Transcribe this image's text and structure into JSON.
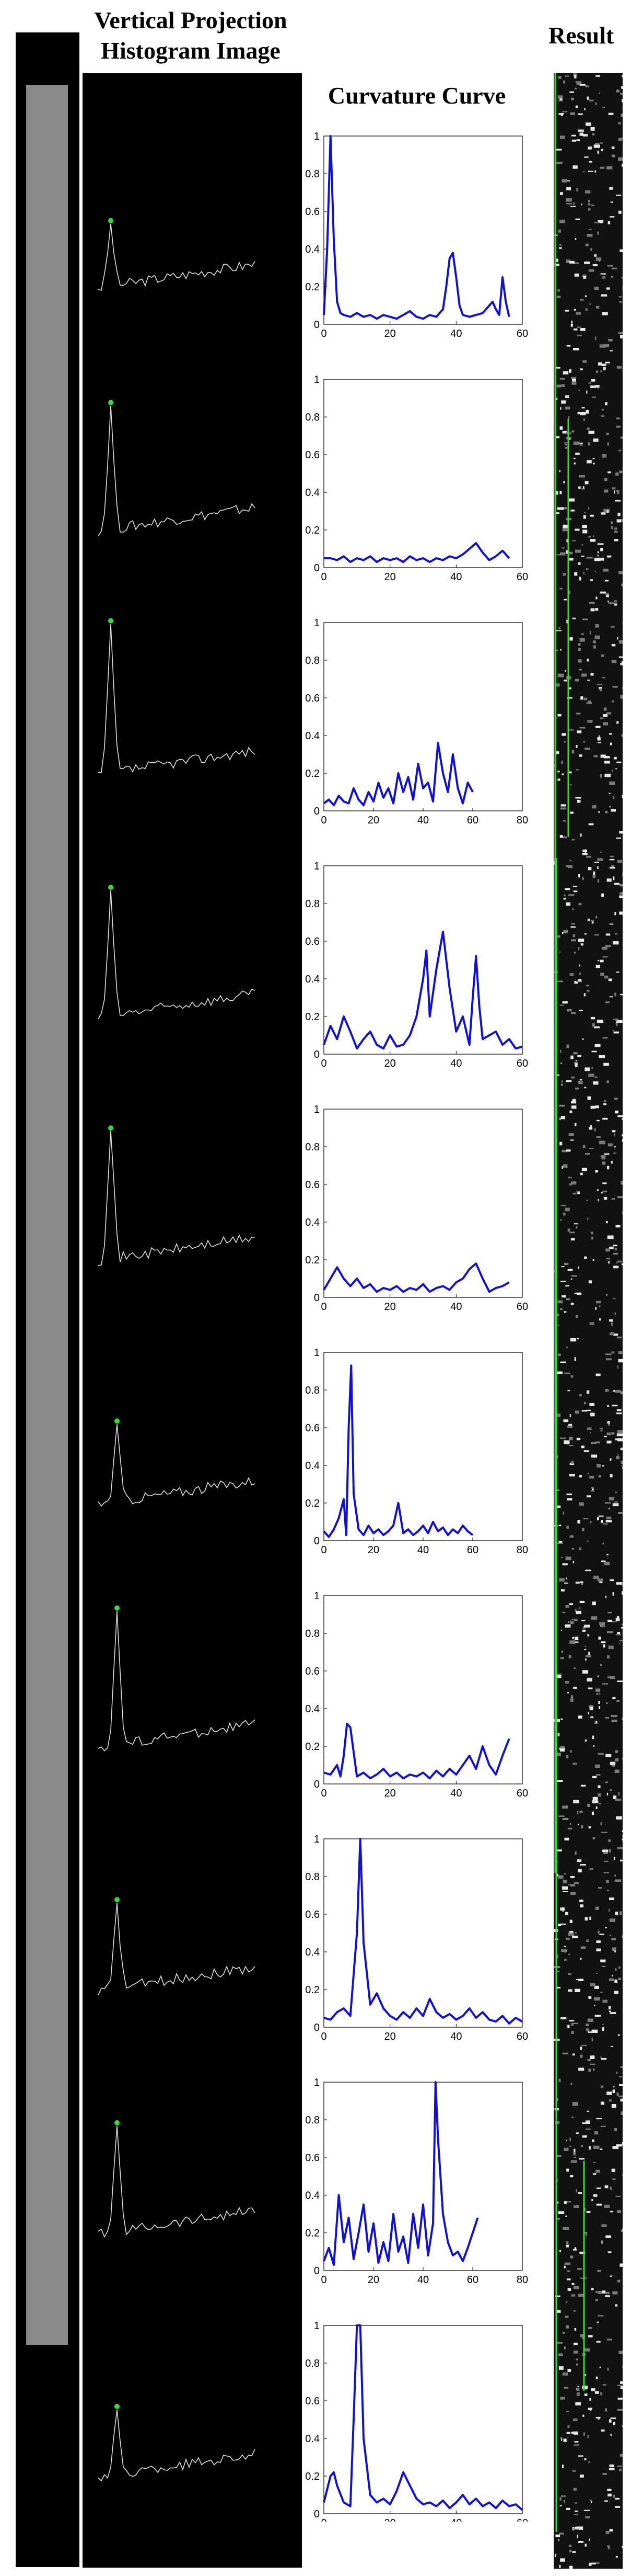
{
  "headers": {
    "vertical_projection": "Vertical Projection Histogram Image",
    "curvature_curve": "Curvature Curve",
    "result": "Result"
  },
  "colors": {
    "curve": "#1010d8",
    "marker_green": "#33dd33",
    "marker_red": "#dd2222",
    "result_line": "#33dd33"
  },
  "chart_data": [
    {
      "type": "line",
      "xlim": [
        0,
        60
      ],
      "ylim": [
        0,
        1
      ],
      "xticks": [
        "0",
        "20",
        "40",
        "60"
      ],
      "yticks": [
        "0",
        "0.2",
        "0.4",
        "0.6",
        "0.8",
        "1"
      ],
      "series": [
        {
          "x": [
            0,
            1,
            2,
            3,
            4,
            5,
            6,
            8,
            10,
            12,
            14,
            16,
            18,
            20,
            22,
            24,
            26,
            28,
            30,
            32,
            34,
            36,
            37,
            38,
            39,
            40,
            41,
            42,
            44,
            46,
            48,
            50,
            51,
            52,
            53,
            54,
            55,
            56
          ],
          "values": [
            0.05,
            0.4,
            1.0,
            0.45,
            0.12,
            0.06,
            0.05,
            0.04,
            0.06,
            0.04,
            0.05,
            0.03,
            0.05,
            0.04,
            0.03,
            0.05,
            0.07,
            0.04,
            0.03,
            0.05,
            0.04,
            0.08,
            0.2,
            0.35,
            0.38,
            0.25,
            0.1,
            0.05,
            0.04,
            0.05,
            0.06,
            0.1,
            0.12,
            0.08,
            0.05,
            0.25,
            0.12,
            0.04
          ]
        }
      ]
    },
    {
      "type": "line",
      "xlim": [
        0,
        60
      ],
      "ylim": [
        0,
        1
      ],
      "xticks": [
        "0",
        "20",
        "40",
        "60"
      ],
      "yticks": [
        "0",
        "0.2",
        "0.4",
        "0.6",
        "0.8",
        "1"
      ],
      "series": [
        {
          "x": [
            0,
            2,
            4,
            6,
            8,
            10,
            12,
            14,
            16,
            18,
            20,
            22,
            24,
            26,
            28,
            30,
            32,
            34,
            36,
            38,
            40,
            42,
            44,
            46,
            48,
            50,
            52,
            54,
            56
          ],
          "values": [
            0.05,
            0.05,
            0.04,
            0.06,
            0.03,
            0.05,
            0.04,
            0.06,
            0.03,
            0.05,
            0.04,
            0.05,
            0.03,
            0.06,
            0.04,
            0.05,
            0.03,
            0.05,
            0.04,
            0.06,
            0.05,
            0.07,
            0.1,
            0.13,
            0.08,
            0.04,
            0.06,
            0.09,
            0.05
          ]
        }
      ]
    },
    {
      "type": "line",
      "xlim": [
        0,
        80
      ],
      "ylim": [
        0,
        1
      ],
      "xticks": [
        "0",
        "20",
        "40",
        "60",
        "80"
      ],
      "yticks": [
        "0",
        "0.2",
        "0.4",
        "0.6",
        "0.8",
        "1"
      ],
      "series": [
        {
          "x": [
            0,
            2,
            4,
            6,
            8,
            10,
            12,
            14,
            16,
            18,
            20,
            22,
            24,
            26,
            28,
            30,
            32,
            34,
            36,
            38,
            40,
            42,
            44,
            46,
            48,
            50,
            52,
            54,
            56,
            58,
            60
          ],
          "values": [
            0.04,
            0.06,
            0.03,
            0.08,
            0.05,
            0.04,
            0.12,
            0.06,
            0.03,
            0.1,
            0.05,
            0.15,
            0.07,
            0.12,
            0.04,
            0.2,
            0.1,
            0.18,
            0.06,
            0.25,
            0.12,
            0.15,
            0.05,
            0.36,
            0.2,
            0.1,
            0.3,
            0.12,
            0.04,
            0.15,
            0.1
          ]
        }
      ]
    },
    {
      "type": "line",
      "xlim": [
        0,
        60
      ],
      "ylim": [
        0,
        1
      ],
      "xticks": [
        "0",
        "20",
        "40",
        "60"
      ],
      "yticks": [
        "0",
        "0.2",
        "0.4",
        "0.6",
        "0.8",
        "1"
      ],
      "series": [
        {
          "x": [
            0,
            2,
            4,
            6,
            8,
            10,
            12,
            14,
            16,
            18,
            20,
            22,
            24,
            26,
            28,
            30,
            31,
            32,
            34,
            36,
            38,
            40,
            42,
            44,
            45,
            46,
            47,
            48,
            50,
            52,
            54,
            56,
            58,
            60
          ],
          "values": [
            0.05,
            0.15,
            0.08,
            0.2,
            0.12,
            0.03,
            0.08,
            0.12,
            0.05,
            0.03,
            0.1,
            0.04,
            0.05,
            0.1,
            0.2,
            0.4,
            0.55,
            0.2,
            0.45,
            0.65,
            0.35,
            0.12,
            0.2,
            0.05,
            0.3,
            0.52,
            0.25,
            0.08,
            0.1,
            0.12,
            0.05,
            0.08,
            0.03,
            0.04
          ]
        }
      ]
    },
    {
      "type": "line",
      "xlim": [
        0,
        60
      ],
      "ylim": [
        0,
        1
      ],
      "xticks": [
        "0",
        "20",
        "40",
        "60"
      ],
      "yticks": [
        "0",
        "0.2",
        "0.4",
        "0.6",
        "0.8",
        "1"
      ],
      "series": [
        {
          "x": [
            0,
            2,
            4,
            6,
            8,
            10,
            12,
            14,
            16,
            18,
            20,
            22,
            24,
            26,
            28,
            30,
            32,
            34,
            36,
            38,
            40,
            42,
            44,
            46,
            48,
            50,
            52,
            54,
            56
          ],
          "values": [
            0.04,
            0.1,
            0.16,
            0.1,
            0.06,
            0.1,
            0.05,
            0.07,
            0.03,
            0.05,
            0.04,
            0.06,
            0.03,
            0.05,
            0.04,
            0.07,
            0.03,
            0.05,
            0.06,
            0.04,
            0.08,
            0.1,
            0.15,
            0.18,
            0.1,
            0.03,
            0.05,
            0.06,
            0.08
          ]
        }
      ]
    },
    {
      "type": "line",
      "xlim": [
        0,
        80
      ],
      "ylim": [
        0,
        1
      ],
      "xticks": [
        "0",
        "20",
        "40",
        "60",
        "80"
      ],
      "yticks": [
        "0",
        "0.2",
        "0.4",
        "0.6",
        "0.8",
        "1"
      ],
      "series": [
        {
          "x": [
            0,
            2,
            4,
            6,
            8,
            9,
            10,
            11,
            12,
            14,
            16,
            18,
            20,
            22,
            24,
            26,
            28,
            30,
            32,
            34,
            36,
            38,
            40,
            42,
            44,
            46,
            48,
            50,
            52,
            54,
            56,
            58,
            60
          ],
          "values": [
            0.05,
            0.02,
            0.06,
            0.12,
            0.22,
            0.03,
            0.6,
            0.93,
            0.25,
            0.06,
            0.03,
            0.08,
            0.04,
            0.06,
            0.03,
            0.05,
            0.08,
            0.2,
            0.04,
            0.06,
            0.03,
            0.05,
            0.08,
            0.04,
            0.1,
            0.05,
            0.07,
            0.03,
            0.06,
            0.04,
            0.08,
            0.05,
            0.03
          ]
        }
      ]
    },
    {
      "type": "line",
      "xlim": [
        0,
        60
      ],
      "ylim": [
        0,
        1
      ],
      "xticks": [
        "0",
        "20",
        "40",
        "60"
      ],
      "yticks": [
        "0",
        "0.2",
        "0.4",
        "0.6",
        "0.8",
        "1"
      ],
      "series": [
        {
          "x": [
            0,
            2,
            4,
            5,
            6,
            7,
            8,
            10,
            12,
            14,
            16,
            18,
            20,
            22,
            24,
            26,
            28,
            30,
            32,
            34,
            36,
            38,
            40,
            42,
            44,
            46,
            48,
            50,
            52,
            54,
            56
          ],
          "values": [
            0.06,
            0.05,
            0.1,
            0.04,
            0.15,
            0.32,
            0.3,
            0.04,
            0.06,
            0.03,
            0.05,
            0.08,
            0.04,
            0.06,
            0.03,
            0.05,
            0.04,
            0.06,
            0.03,
            0.07,
            0.04,
            0.08,
            0.05,
            0.1,
            0.15,
            0.08,
            0.2,
            0.1,
            0.05,
            0.15,
            0.24
          ]
        }
      ]
    },
    {
      "type": "line",
      "xlim": [
        0,
        60
      ],
      "ylim": [
        0,
        1
      ],
      "xticks": [
        "0",
        "20",
        "40",
        "60"
      ],
      "yticks": [
        "0",
        "0.2",
        "0.4",
        "0.6",
        "0.8",
        "1"
      ],
      "series": [
        {
          "x": [
            0,
            2,
            4,
            6,
            8,
            10,
            11,
            12,
            14,
            16,
            18,
            20,
            22,
            24,
            26,
            28,
            30,
            32,
            34,
            36,
            38,
            40,
            42,
            44,
            46,
            48,
            50,
            52,
            54,
            56,
            58,
            60
          ],
          "values": [
            0.05,
            0.04,
            0.08,
            0.1,
            0.06,
            0.5,
            1.0,
            0.45,
            0.12,
            0.18,
            0.1,
            0.06,
            0.04,
            0.08,
            0.05,
            0.1,
            0.06,
            0.15,
            0.08,
            0.05,
            0.07,
            0.04,
            0.06,
            0.1,
            0.05,
            0.08,
            0.04,
            0.03,
            0.06,
            0.02,
            0.05,
            0.03
          ]
        }
      ]
    },
    {
      "type": "line",
      "xlim": [
        0,
        80
      ],
      "ylim": [
        0,
        1
      ],
      "xticks": [
        "0",
        "20",
        "40",
        "60",
        "80"
      ],
      "yticks": [
        "0",
        "0.2",
        "0.4",
        "0.6",
        "0.8",
        "1"
      ],
      "series": [
        {
          "x": [
            0,
            2,
            4,
            6,
            8,
            10,
            12,
            14,
            16,
            18,
            20,
            22,
            24,
            26,
            28,
            30,
            32,
            34,
            36,
            38,
            40,
            42,
            44,
            45,
            46,
            48,
            50,
            52,
            54,
            56,
            58,
            60,
            62
          ],
          "values": [
            0.05,
            0.12,
            0.03,
            0.4,
            0.15,
            0.28,
            0.06,
            0.2,
            0.35,
            0.1,
            0.25,
            0.04,
            0.15,
            0.05,
            0.3,
            0.1,
            0.18,
            0.04,
            0.3,
            0.12,
            0.35,
            0.08,
            0.25,
            1.0,
            0.7,
            0.3,
            0.15,
            0.08,
            0.1,
            0.05,
            0.12,
            0.2,
            0.28
          ]
        }
      ]
    },
    {
      "type": "line",
      "xlim": [
        0,
        60
      ],
      "ylim": [
        0,
        1
      ],
      "xticks": [
        "0",
        "20",
        "40",
        "60"
      ],
      "yticks": [
        "0",
        "0.2",
        "0.4",
        "0.6",
        "0.8",
        "1"
      ],
      "series": [
        {
          "x": [
            0,
            2,
            3,
            4,
            6,
            8,
            9,
            10,
            11,
            12,
            14,
            16,
            18,
            20,
            22,
            24,
            26,
            28,
            30,
            32,
            34,
            36,
            38,
            40,
            42,
            44,
            46,
            48,
            50,
            52,
            54,
            56,
            58,
            60
          ],
          "values": [
            0.06,
            0.2,
            0.22,
            0.15,
            0.06,
            0.04,
            0.5,
            1.0,
            1.0,
            0.4,
            0.1,
            0.06,
            0.08,
            0.05,
            0.12,
            0.22,
            0.15,
            0.08,
            0.05,
            0.06,
            0.04,
            0.07,
            0.03,
            0.06,
            0.1,
            0.05,
            0.08,
            0.04,
            0.06,
            0.03,
            0.07,
            0.04,
            0.05,
            0.02
          ]
        }
      ]
    }
  ]
}
